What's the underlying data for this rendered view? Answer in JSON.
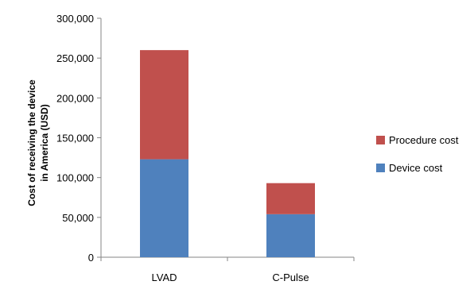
{
  "chart_data": {
    "type": "bar",
    "stacked": true,
    "categories": [
      "LVAD",
      "C-Pulse"
    ],
    "series": [
      {
        "name": "Device cost",
        "values": [
          123000,
          54000
        ],
        "color": "#4F81BD"
      },
      {
        "name": "Procedure cost",
        "values": [
          137000,
          39000
        ],
        "color": "#C0504D"
      }
    ],
    "yticks": [
      "0",
      "50,000",
      "100,000",
      "150,000",
      "200,000",
      "250,000",
      "300,000"
    ],
    "ylim": [
      0,
      300000
    ],
    "ylabel_lines": [
      "Cost of receiving the device",
      "in America (USD)"
    ],
    "xlabel": "",
    "title": "",
    "grid": false,
    "legend_position": "right"
  }
}
